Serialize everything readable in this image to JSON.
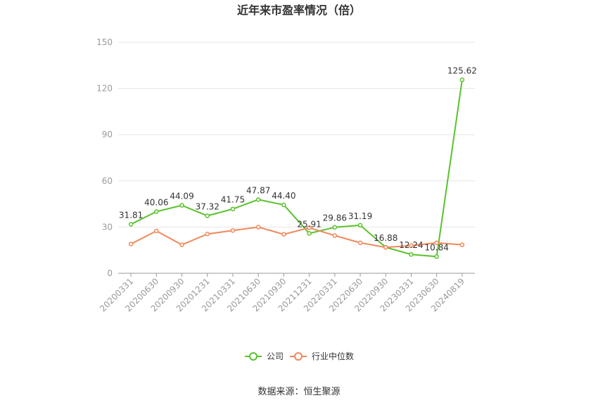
{
  "chart_data": {
    "type": "line",
    "title": "近年来市盈率情况（倍）",
    "categories": [
      "20200331",
      "20200630",
      "20200930",
      "20201231",
      "20210331",
      "20210630",
      "20210930",
      "20211231",
      "20220331",
      "20220630",
      "20220930",
      "20230331",
      "20230630",
      "20240819"
    ],
    "series": [
      {
        "name": "公司",
        "color": "#5ac22c",
        "values": [
          31.81,
          40.06,
          44.09,
          37.32,
          41.75,
          47.87,
          44.4,
          25.91,
          29.86,
          31.19,
          16.88,
          12.24,
          10.84,
          125.62
        ],
        "labels": [
          "31.81",
          "40.06",
          "44.09",
          "37.32",
          "41.75",
          "47.87",
          "44.40",
          "25.91",
          "29.86",
          "31.19",
          "16.88",
          "12.24",
          "10.84",
          "125.62"
        ]
      },
      {
        "name": "行业中位数",
        "color": "#f0885a",
        "values": [
          19.0,
          27.5,
          18.5,
          25.5,
          27.8,
          30.0,
          25.3,
          29.6,
          24.5,
          19.8,
          16.8,
          18.0,
          19.8,
          18.5
        ]
      }
    ],
    "yticks": [
      "0",
      "30",
      "60",
      "90",
      "120",
      "150"
    ],
    "ylim": [
      0,
      150
    ],
    "grid": true,
    "legend_position": "bottom"
  },
  "source": "数据来源：恒生聚源"
}
